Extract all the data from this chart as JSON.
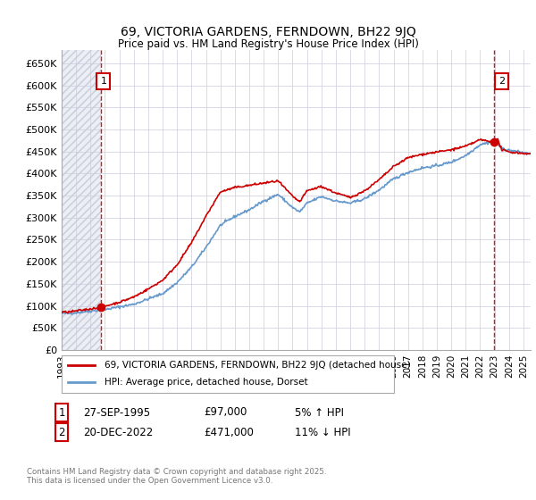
{
  "title": "69, VICTORIA GARDENS, FERNDOWN, BH22 9JQ",
  "subtitle": "Price paid vs. HM Land Registry's House Price Index (HPI)",
  "legend_line1": "69, VICTORIA GARDENS, FERNDOWN, BH22 9JQ (detached house)",
  "legend_line2": "HPI: Average price, detached house, Dorset",
  "annotation1_label": "1",
  "annotation1_date": "27-SEP-1995",
  "annotation1_price": "£97,000",
  "annotation1_hpi": "5% ↑ HPI",
  "annotation2_label": "2",
  "annotation2_date": "20-DEC-2022",
  "annotation2_price": "£471,000",
  "annotation2_hpi": "11% ↓ HPI",
  "footer": "Contains HM Land Registry data © Crown copyright and database right 2025.\nThis data is licensed under the Open Government Licence v3.0.",
  "ylabel_ticks": [
    0,
    50000,
    100000,
    150000,
    200000,
    250000,
    300000,
    350000,
    400000,
    450000,
    500000,
    550000,
    600000,
    650000
  ],
  "ylim": [
    0,
    680000
  ],
  "xlim_start": 1993.0,
  "xlim_end": 2025.5,
  "sale1_x": 1995.75,
  "sale1_y": 97000,
  "sale2_x": 2022.97,
  "sale2_y": 471000,
  "line_color_price": "#cc0000",
  "line_color_hpi": "#6699cc",
  "grid_color": "#ccccdd",
  "annotation_box_color": "#cc0000",
  "dashed_line_color": "#cc0000",
  "hatch_facecolor": "#eceef5",
  "hatch_edgecolor": "#c8cad8"
}
